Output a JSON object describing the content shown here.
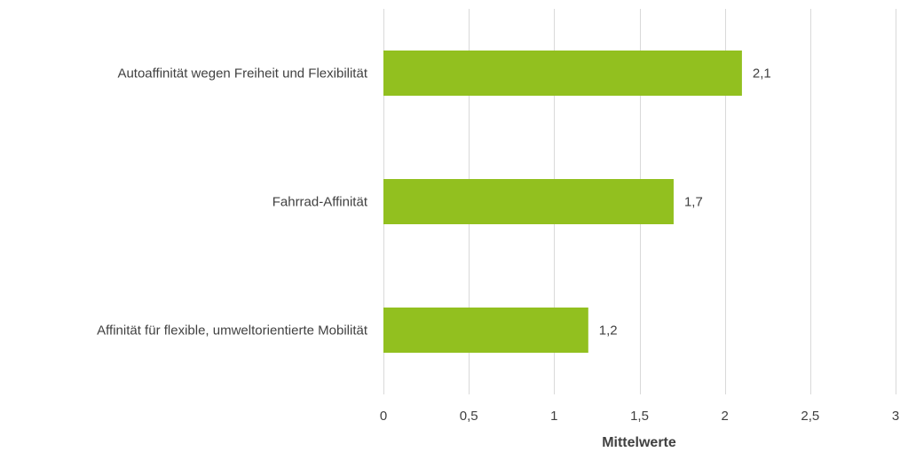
{
  "chart_data": {
    "type": "bar",
    "orientation": "horizontal",
    "categories": [
      "Autoaffinität wegen Freiheit und Flexibilität",
      "Fahrrad-Affinität",
      "Affinität für flexible, umweltorientierte Mobilität"
    ],
    "values": [
      2.1,
      1.7,
      1.2
    ],
    "value_labels": [
      "2,1",
      "1,7",
      "1,2"
    ],
    "title": "",
    "xlabel": "Mittelwerte",
    "ylabel": "",
    "xlim": [
      0,
      3
    ],
    "ticks": [
      0,
      0.5,
      1,
      1.5,
      2,
      2.5,
      3
    ],
    "tick_labels": [
      "0",
      "0,5",
      "1",
      "1,5",
      "2",
      "2,5",
      "3"
    ],
    "grid": true,
    "legend": "none",
    "bar_color": "#92c01f"
  }
}
